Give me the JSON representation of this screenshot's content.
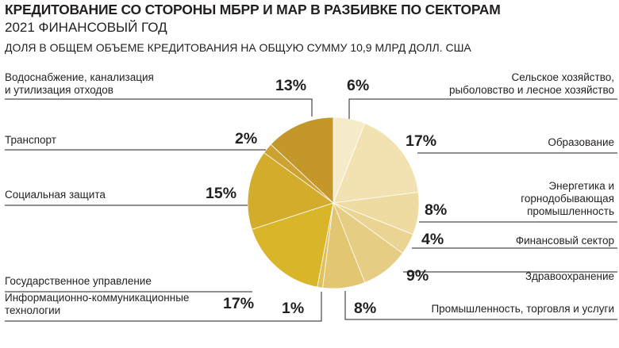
{
  "title": "КРЕДИТОВАНИЕ СО СТОРОНЫ МБРР И МАР В РАЗБИВКЕ ПО СЕКТОРАМ",
  "subtitle": "2021 ФИНАНСОВЫЙ ГОД",
  "note": "ДОЛЯ В ОБЩЕМ ОБЪЕМЕ КРЕДИТОВАНИЯ НА ОБЩУЮ СУММУ 10,9 МЛРД ДОЛЛ. США",
  "chart_data": {
    "type": "pie",
    "title": "КРЕДИТОВАНИЕ СО СТОРОНЫ МБРР И МАР В РАЗБИВКЕ ПО СЕКТОРАМ",
    "subtitle": "2021 ФИНАНСОВЫЙ ГОД",
    "slices": [
      {
        "name": "Сельское хозяйство, рыболовство и лесное хозяйство",
        "value": 6,
        "label": "6%",
        "color": "#f6ebc8"
      },
      {
        "name": "Образование",
        "value": 17,
        "label": "17%",
        "color": "#f2e2b2"
      },
      {
        "name": "Энергетика и горнодобывающая промышленность",
        "value": 8,
        "label": "8%",
        "color": "#eedba2"
      },
      {
        "name": "Финансовый сектор",
        "value": 4,
        "label": "4%",
        "color": "#ead493"
      },
      {
        "name": "Здравоохранение",
        "value": 9,
        "label": "9%",
        "color": "#e6cd84"
      },
      {
        "name": "Промышленность, торговля и услуги",
        "value": 8,
        "label": "8%",
        "color": "#e2c672"
      },
      {
        "name": "Информационно-коммуникационные технологии",
        "value": 1,
        "label": "1%",
        "color": "#ddc25c"
      },
      {
        "name": "Государственное управление",
        "value": 17,
        "label": "17%",
        "color": "#d9b52a"
      },
      {
        "name": "Социальная защита",
        "value": 15,
        "label": "15%",
        "color": "#d2ac2a"
      },
      {
        "name": "Транспорт",
        "value": 2,
        "label": "2%",
        "color": "#cca232"
      },
      {
        "name": "Водоснабжение, канализация и утилизация отходов",
        "value": 13,
        "label": "13%",
        "color": "#c4972b"
      }
    ]
  },
  "labels": {
    "agri": [
      "Сельское хозяйство,",
      "рыболовство и лесное хозяйство"
    ],
    "edu": [
      "Образование"
    ],
    "energy": [
      "Энергетика и",
      "горнодобывающая",
      "промышленность"
    ],
    "fin": [
      "Финансовый сектор"
    ],
    "health": [
      "Здравоохранение"
    ],
    "industry": [
      "Промышленность, торговля и услуги"
    ],
    "ict": [
      "Информационно-коммуникационные",
      "технологии"
    ],
    "gov": [
      "Государственное управление"
    ],
    "social": [
      "Социальная защита"
    ],
    "transport": [
      "Транспорт"
    ],
    "water": [
      "Водоснабжение, канализация",
      "и утилизация отходов"
    ]
  }
}
